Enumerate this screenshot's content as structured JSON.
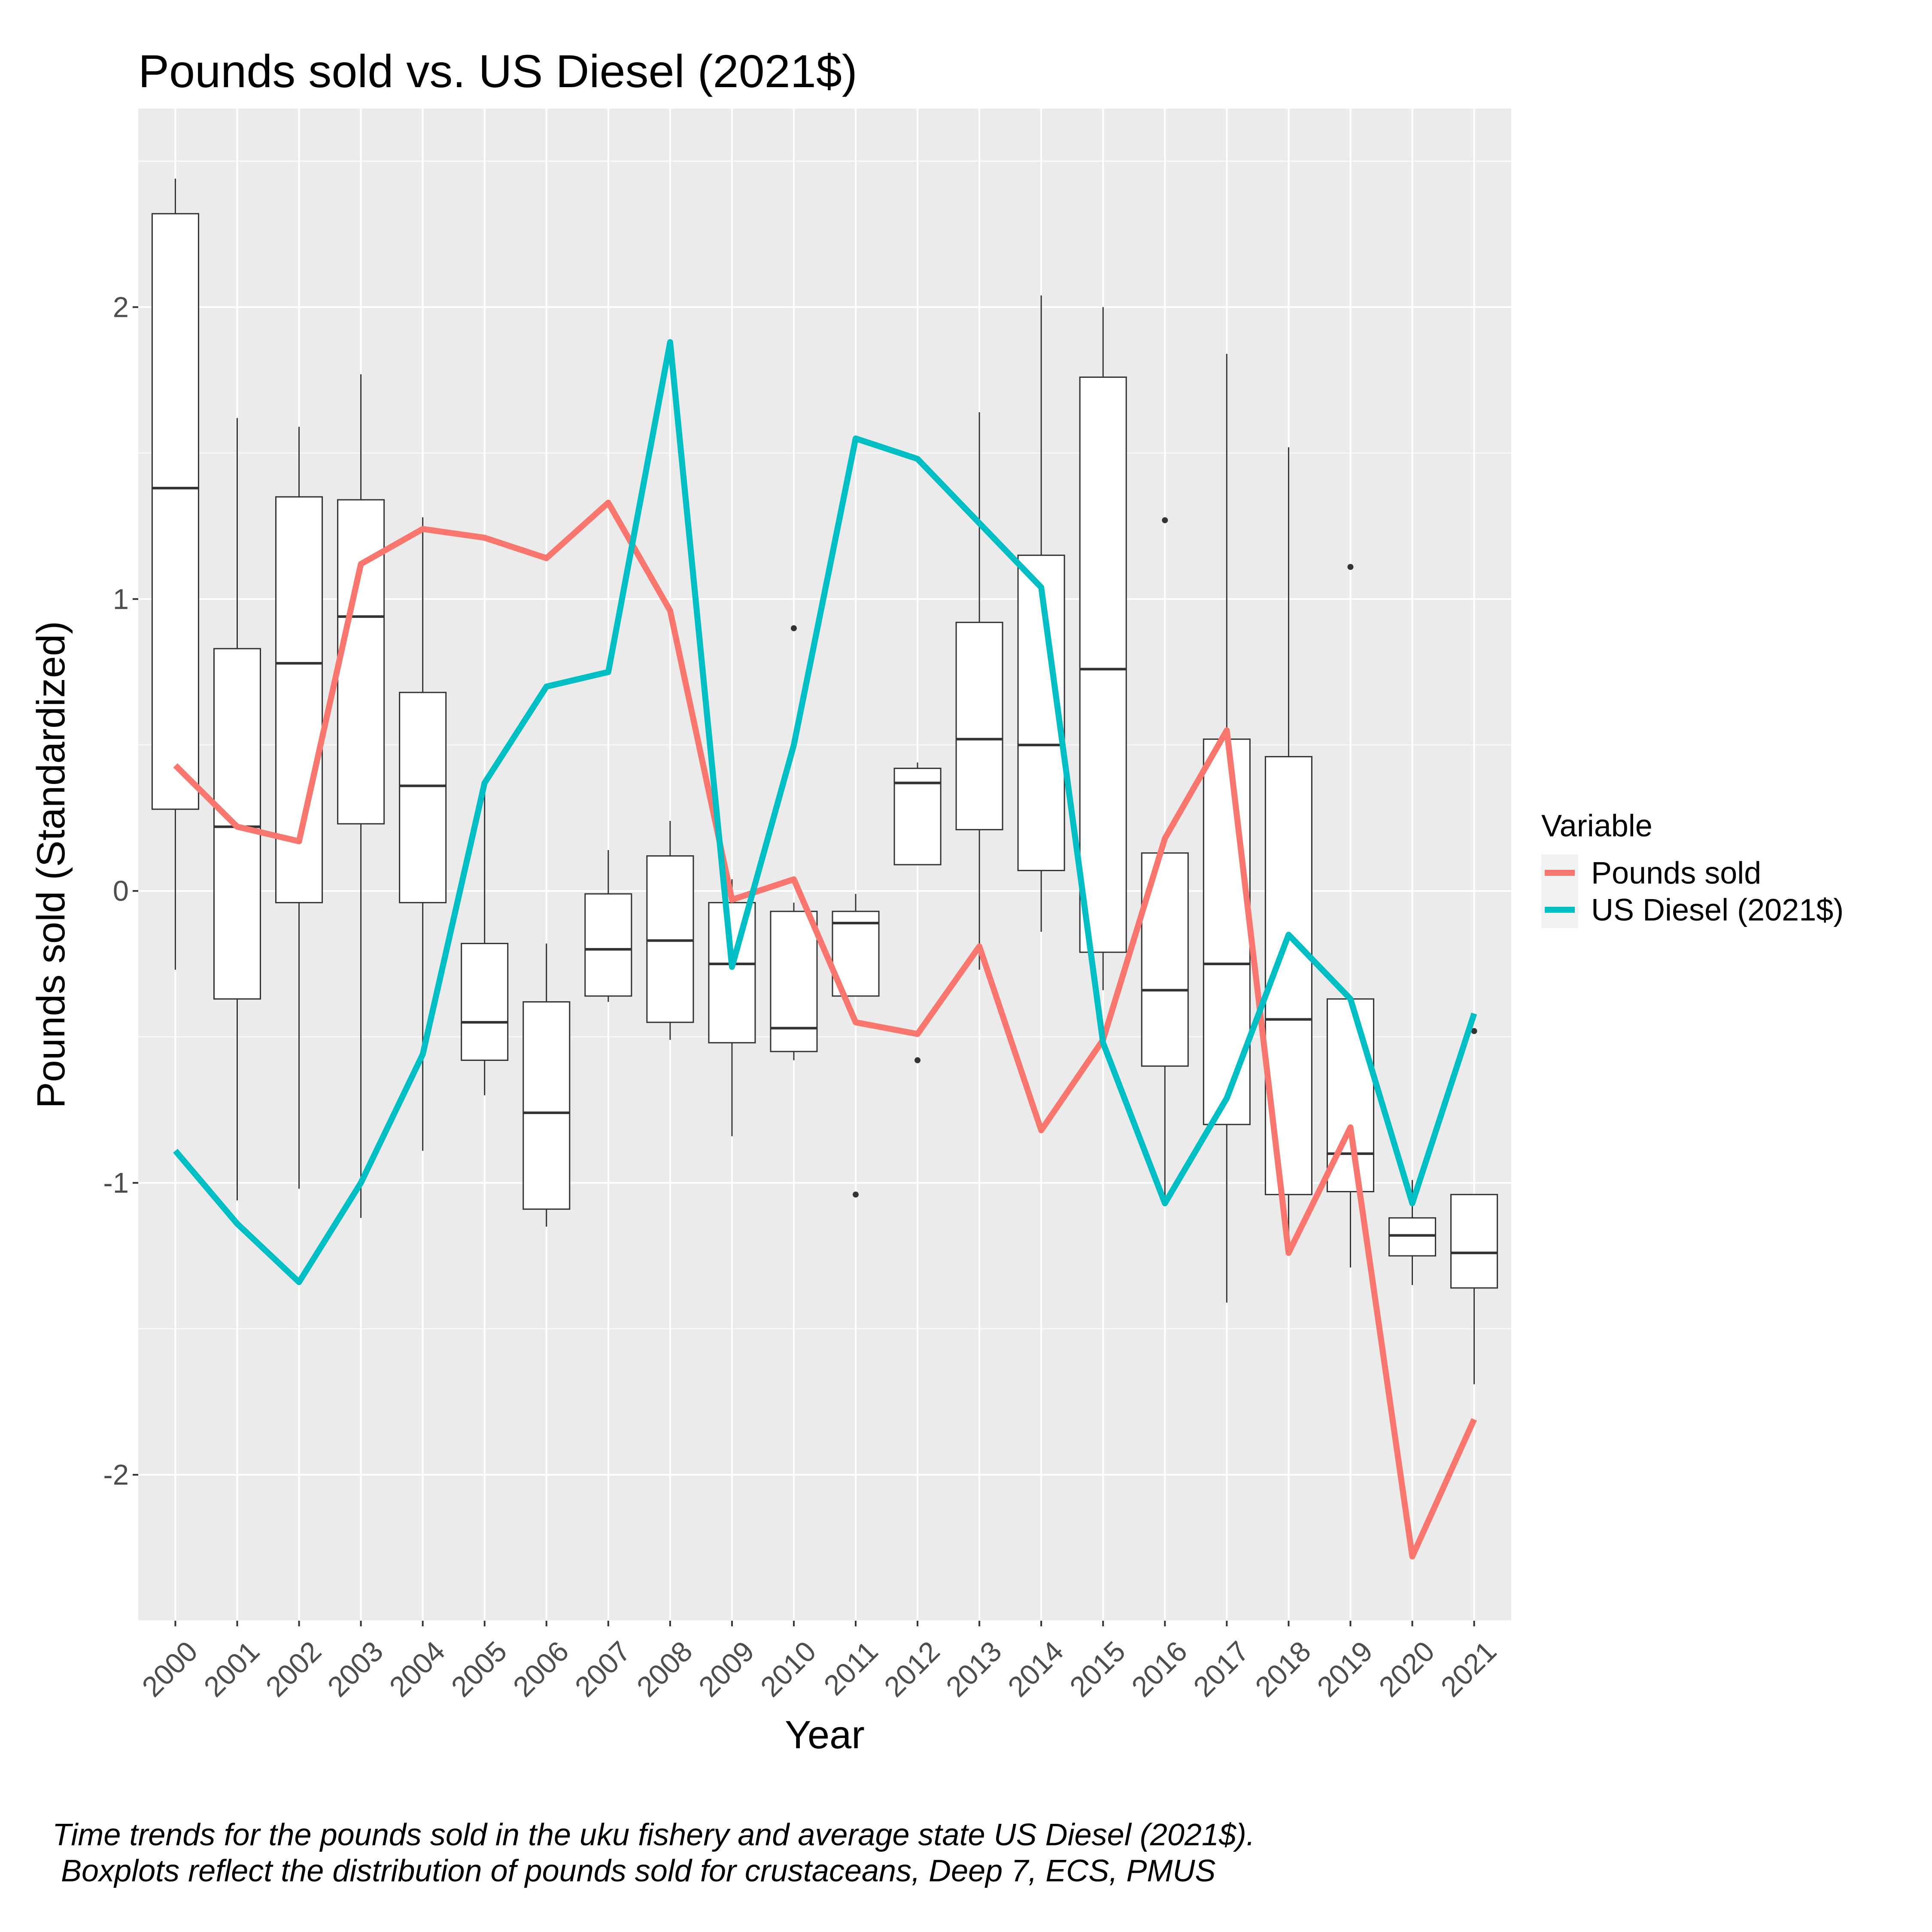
{
  "chart_data": {
    "type": "line",
    "title": "Pounds sold vs. US Diesel (2021$)",
    "xlabel": "Year",
    "ylabel": "Pounds sold (Standardized)",
    "categories": [
      "2000",
      "2001",
      "2002",
      "2003",
      "2004",
      "2005",
      "2006",
      "2007",
      "2008",
      "2009",
      "2010",
      "2011",
      "2012",
      "2013",
      "2014",
      "2015",
      "2016",
      "2017",
      "2018",
      "2019",
      "2020",
      "2021"
    ],
    "ylim": [
      -2.5,
      2.68
    ],
    "yticks": [
      -2,
      -1,
      0,
      1,
      2
    ],
    "ytick_labels": [
      "-2",
      "-1",
      "0",
      "1",
      "2"
    ],
    "grid": true,
    "legend": {
      "title": "Variable",
      "position": "right",
      "entries": [
        "Pounds sold",
        "US Diesel (2021$)"
      ]
    },
    "series": [
      {
        "name": "Pounds sold",
        "color": "#F8766D",
        "values": [
          0.43,
          0.22,
          0.17,
          1.12,
          1.24,
          1.21,
          1.14,
          1.33,
          0.96,
          -0.03,
          0.04,
          -0.45,
          -0.49,
          -0.19,
          -0.82,
          -0.51,
          0.18,
          0.55,
          -1.24,
          -0.81,
          -2.28,
          -1.81
        ]
      },
      {
        "name": "US Diesel (2021$)",
        "color": "#00BFC4",
        "values": [
          -0.89,
          -1.14,
          -1.34,
          -1.0,
          -0.56,
          0.37,
          0.7,
          0.75,
          1.88,
          -0.26,
          0.5,
          1.55,
          1.48,
          1.26,
          1.04,
          -0.52,
          -1.07,
          -0.71,
          -0.15,
          -0.37,
          -1.07,
          -0.42
        ]
      }
    ],
    "boxplots": [
      {
        "year": "2000",
        "lower_whisker": -0.27,
        "q1": 0.28,
        "median": 1.38,
        "q3": 2.32,
        "upper_whisker": 2.44,
        "outliers": []
      },
      {
        "year": "2001",
        "lower_whisker": -1.06,
        "q1": -0.37,
        "median": 0.22,
        "q3": 0.83,
        "upper_whisker": 1.62,
        "outliers": []
      },
      {
        "year": "2002",
        "lower_whisker": -1.02,
        "q1": -0.04,
        "median": 0.78,
        "q3": 1.35,
        "upper_whisker": 1.59,
        "outliers": []
      },
      {
        "year": "2003",
        "lower_whisker": -1.12,
        "q1": 0.23,
        "median": 0.94,
        "q3": 1.34,
        "upper_whisker": 1.77,
        "outliers": []
      },
      {
        "year": "2004",
        "lower_whisker": -0.89,
        "q1": -0.04,
        "median": 0.36,
        "q3": 0.68,
        "upper_whisker": 1.28,
        "outliers": []
      },
      {
        "year": "2005",
        "lower_whisker": -0.7,
        "q1": -0.58,
        "median": -0.45,
        "q3": -0.18,
        "upper_whisker": 0.35,
        "outliers": []
      },
      {
        "year": "2006",
        "lower_whisker": -1.15,
        "q1": -1.09,
        "median": -0.76,
        "q3": -0.38,
        "upper_whisker": -0.18,
        "outliers": []
      },
      {
        "year": "2007",
        "lower_whisker": -0.38,
        "q1": -0.36,
        "median": -0.2,
        "q3": -0.01,
        "upper_whisker": 0.14,
        "outliers": []
      },
      {
        "year": "2008",
        "lower_whisker": -0.51,
        "q1": -0.45,
        "median": -0.17,
        "q3": 0.12,
        "upper_whisker": 0.24,
        "outliers": []
      },
      {
        "year": "2009",
        "lower_whisker": -0.84,
        "q1": -0.52,
        "median": -0.25,
        "q3": -0.04,
        "upper_whisker": 0.04,
        "outliers": []
      },
      {
        "year": "2010",
        "lower_whisker": -0.58,
        "q1": -0.55,
        "median": -0.47,
        "q3": -0.07,
        "upper_whisker": -0.04,
        "outliers": [
          0.9
        ]
      },
      {
        "year": "2011",
        "lower_whisker": -0.36,
        "q1": -0.36,
        "median": -0.11,
        "q3": -0.07,
        "upper_whisker": -0.01,
        "outliers": [
          -1.04
        ]
      },
      {
        "year": "2012",
        "lower_whisker": 0.09,
        "q1": 0.09,
        "median": 0.37,
        "q3": 0.42,
        "upper_whisker": 0.44,
        "outliers": [
          -0.58
        ]
      },
      {
        "year": "2013",
        "lower_whisker": -0.27,
        "q1": 0.21,
        "median": 0.52,
        "q3": 0.92,
        "upper_whisker": 1.64,
        "outliers": []
      },
      {
        "year": "2014",
        "lower_whisker": -0.14,
        "q1": 0.07,
        "median": 0.5,
        "q3": 1.15,
        "upper_whisker": 2.04,
        "outliers": []
      },
      {
        "year": "2015",
        "lower_whisker": -0.34,
        "q1": -0.21,
        "median": 0.76,
        "q3": 1.76,
        "upper_whisker": 2.0,
        "outliers": []
      },
      {
        "year": "2016",
        "lower_whisker": -1.06,
        "q1": -0.6,
        "median": -0.34,
        "q3": 0.13,
        "upper_whisker": 0.13,
        "outliers": [
          1.27
        ]
      },
      {
        "year": "2017",
        "lower_whisker": -1.41,
        "q1": -0.8,
        "median": -0.25,
        "q3": 0.52,
        "upper_whisker": 1.84,
        "outliers": []
      },
      {
        "year": "2018",
        "lower_whisker": -1.2,
        "q1": -1.04,
        "median": -0.44,
        "q3": 0.46,
        "upper_whisker": 1.52,
        "outliers": []
      },
      {
        "year": "2019",
        "lower_whisker": -1.29,
        "q1": -1.03,
        "median": -0.9,
        "q3": -0.37,
        "upper_whisker": -0.37,
        "outliers": [
          1.11
        ]
      },
      {
        "year": "2020",
        "lower_whisker": -1.35,
        "q1": -1.25,
        "median": -1.18,
        "q3": -1.12,
        "upper_whisker": -0.99,
        "outliers": []
      },
      {
        "year": "2021",
        "lower_whisker": -1.69,
        "q1": -1.36,
        "median": -1.24,
        "q3": -1.04,
        "upper_whisker": -1.04,
        "outliers": [
          -0.48
        ]
      }
    ],
    "caption": [
      "Time trends for the pounds sold in the uku fishery and average state US Diesel (2021$).",
      " Boxplots reflect the distribution of pounds sold for crustaceans, Deep 7, ECS, PMUS"
    ]
  }
}
